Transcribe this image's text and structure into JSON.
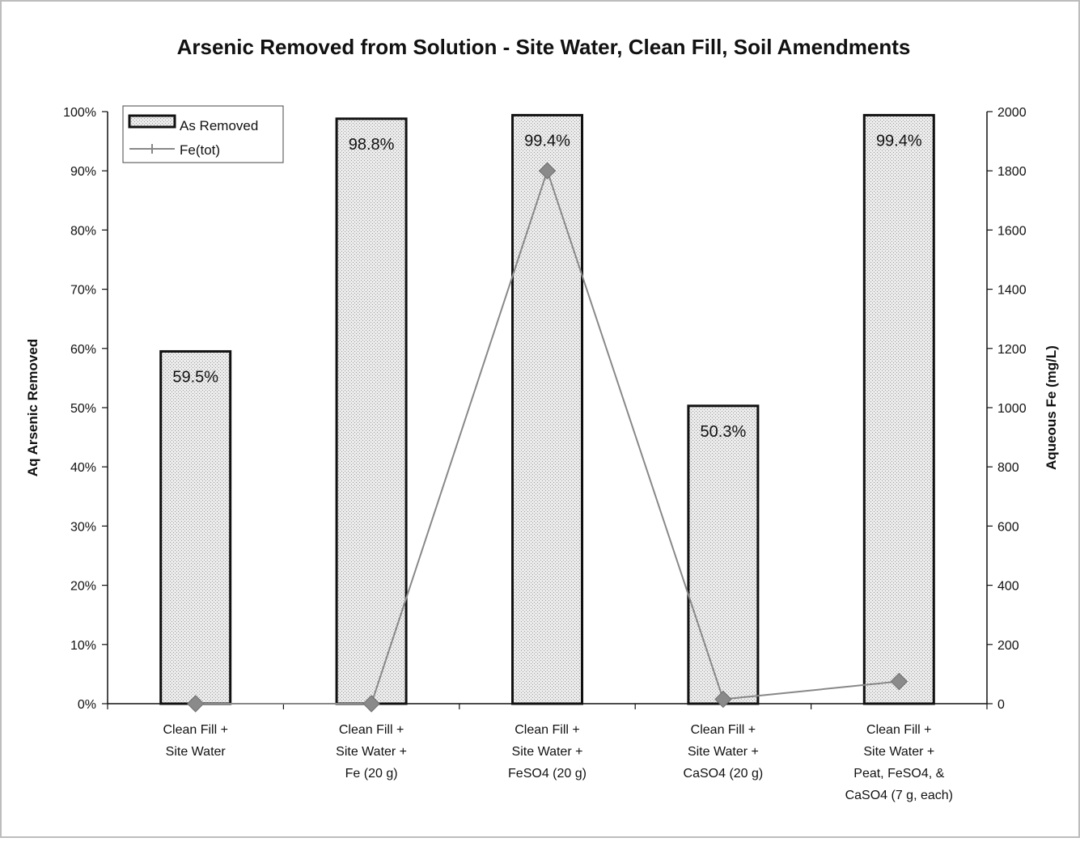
{
  "chart_data": {
    "type": "bar",
    "title": "Arsenic Removed from Solution - Site Water, Clean Fill, Soil Amendments",
    "ylabel": "Aq Arsenic Removed",
    "y2label": "Aqueous Fe (mg/L)",
    "ylim": [
      0,
      100
    ],
    "y2lim": [
      0,
      2000
    ],
    "yticks": [
      "0%",
      "10%",
      "20%",
      "30%",
      "40%",
      "50%",
      "60%",
      "70%",
      "80%",
      "90%",
      "100%"
    ],
    "y2ticks": [
      "0",
      "200",
      "400",
      "600",
      "800",
      "1000",
      "1200",
      "1400",
      "1600",
      "1800",
      "2000"
    ],
    "categories": [
      [
        "Clean Fill +",
        "Site Water"
      ],
      [
        "Clean Fill +",
        "Site Water +",
        "Fe (20 g)"
      ],
      [
        "Clean Fill +",
        "Site Water +",
        "FeSO4 (20 g)"
      ],
      [
        "Clean Fill +",
        "Site Water +",
        "CaSO4 (20 g)"
      ],
      [
        "Clean Fill +",
        "Site Water +",
        "Peat, FeSO4, &",
        "CaSO4 (7 g, each)"
      ]
    ],
    "series": [
      {
        "name": "As Removed",
        "type": "bar",
        "axis": "left",
        "values": [
          59.5,
          98.8,
          99.4,
          50.3,
          99.4
        ],
        "labels": [
          "59.5%",
          "98.8%",
          "99.4%",
          "50.3%",
          "99.4%"
        ]
      },
      {
        "name": "Fe(tot)",
        "type": "line",
        "axis": "right",
        "values": [
          0,
          0,
          1800,
          15,
          75
        ]
      }
    ],
    "legend": "top-left",
    "grid": false,
    "colors": {
      "bar_fill": "#e2e2e2",
      "bar_stroke": "#111111",
      "line": "#888888",
      "marker": "#8a8a8a"
    }
  }
}
